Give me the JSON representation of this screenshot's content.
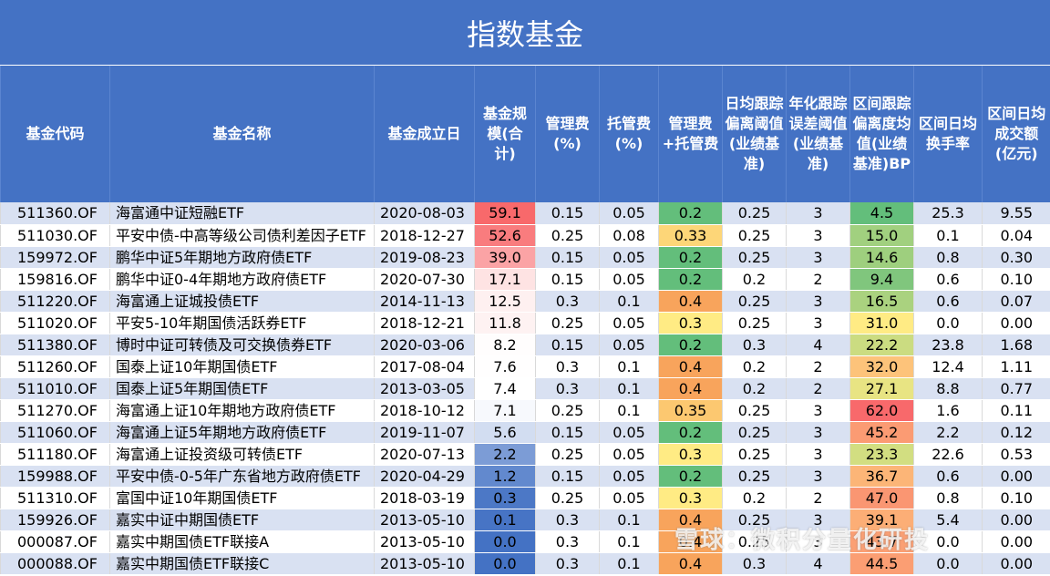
{
  "title": "指数基金",
  "headers": [
    "基金代码",
    "基金名称",
    "基金成立日",
    "基金规模(合计)",
    "管理费(%)",
    "托管费(%)",
    "管理费+托管费",
    "日均跟踪偏离阈值(业绩基准)",
    "年化跟踪误差阈值(业绩基准)",
    "区间跟踪偏离度均值(业绩基准)BP",
    "区间日均换手率",
    "区间日均成交额(亿元)"
  ],
  "rows": [
    [
      "511360.OF",
      "海富通中证短融ETF",
      "2020-08-03",
      "59.1",
      "0.15",
      "0.05",
      "0.2",
      "0.25",
      "3",
      "4.5",
      "25.3",
      "9.55"
    ],
    [
      "511030.OF",
      "平安中债-中高等级公司债利差因子ETF",
      "2018-12-27",
      "52.6",
      "0.25",
      "0.08",
      "0.33",
      "0.25",
      "3",
      "15.0",
      "0.1",
      "0.04"
    ],
    [
      "159972.OF",
      "鹏华中证5年期地方政府债ETF",
      "2019-08-23",
      "39.0",
      "0.15",
      "0.05",
      "0.2",
      "0.25",
      "3",
      "14.6",
      "0.8",
      "0.30"
    ],
    [
      "159816.OF",
      "鹏华中证0-4年期地方政府债ETF",
      "2020-07-30",
      "17.1",
      "0.15",
      "0.05",
      "0.2",
      "0.2",
      "2",
      "9.4",
      "0.6",
      "0.10"
    ],
    [
      "511220.OF",
      "海富通上证城投债ETF",
      "2014-11-13",
      "12.5",
      "0.3",
      "0.1",
      "0.4",
      "0.25",
      "3",
      "16.5",
      "0.6",
      "0.07"
    ],
    [
      "511020.OF",
      "平安5-10年期国债活跃券ETF",
      "2018-12-21",
      "11.8",
      "0.25",
      "0.05",
      "0.3",
      "0.25",
      "3",
      "31.0",
      "0.0",
      "0.00"
    ],
    [
      "511380.OF",
      "博时中证可转债及可交换债券ETF",
      "2020-03-06",
      "8.2",
      "0.15",
      "0.05",
      "0.2",
      "0.3",
      "4",
      "22.2",
      "23.8",
      "1.68"
    ],
    [
      "511260.OF",
      "国泰上证10年期国债ETF",
      "2017-08-04",
      "7.6",
      "0.3",
      "0.1",
      "0.4",
      "0.2",
      "2",
      "32.0",
      "12.4",
      "1.11"
    ],
    [
      "511010.OF",
      "国泰上证5年期国债ETF",
      "2013-03-05",
      "7.4",
      "0.3",
      "0.1",
      "0.4",
      "0.2",
      "2",
      "27.1",
      "8.8",
      "0.77"
    ],
    [
      "511270.OF",
      "海富通上证10年期地方政府债ETF",
      "2018-10-12",
      "7.1",
      "0.25",
      "0.1",
      "0.35",
      "0.25",
      "3",
      "62.0",
      "1.6",
      "0.11"
    ],
    [
      "511060.OF",
      "海富通上证5年期地方政府债ETF",
      "2019-11-07",
      "5.6",
      "0.15",
      "0.05",
      "0.2",
      "0.25",
      "3",
      "45.2",
      "2.2",
      "0.12"
    ],
    [
      "511180.OF",
      "海富通上证投资级可转债ETF",
      "2020-07-13",
      "2.2",
      "0.25",
      "0.05",
      "0.3",
      "0.25",
      "3",
      "23.3",
      "22.6",
      "0.53"
    ],
    [
      "159988.OF",
      "平安中债-0-5年广东省地方政府债ETF",
      "2020-04-29",
      "1.2",
      "0.15",
      "0.05",
      "0.2",
      "0.25",
      "3",
      "36.7",
      "0.6",
      "0.00"
    ],
    [
      "511310.OF",
      "富国中证10年期国债ETF",
      "2018-03-19",
      "0.3",
      "0.25",
      "0.05",
      "0.3",
      "0.2",
      "2",
      "47.0",
      "0.8",
      "0.10"
    ],
    [
      "159926.OF",
      "嘉实中证中期国债ETF",
      "2013-05-10",
      "0.1",
      "0.3",
      "0.1",
      "0.4",
      "0.25",
      "3",
      "39.1",
      "5.4",
      "0.00"
    ],
    [
      "000087.OF",
      "嘉实中期国债ETF联接A",
      "2013-05-10",
      "0.0",
      "0.3",
      "0.1",
      "0.4",
      "0.25",
      "3",
      "43.7",
      "0.0",
      "0.00"
    ],
    [
      "000088.OF",
      "嘉实中期国债ETF联接C",
      "2013-05-10",
      "0.0",
      "0.3",
      "0.1",
      "0.4",
      "0.3",
      "4",
      "44.5",
      "0.0",
      "0.00"
    ]
  ],
  "colors": {
    "header_bg": "#4472c4",
    "band": "#d9e1f2",
    "scale_low": "#4472c4",
    "scale_high": "#f8696b",
    "fee_low": "#63be7b",
    "fee_high": "#f8696b",
    "mid_yellow": "#ffeb84"
  },
  "watermark": "雪球：微积分量化研投"
}
